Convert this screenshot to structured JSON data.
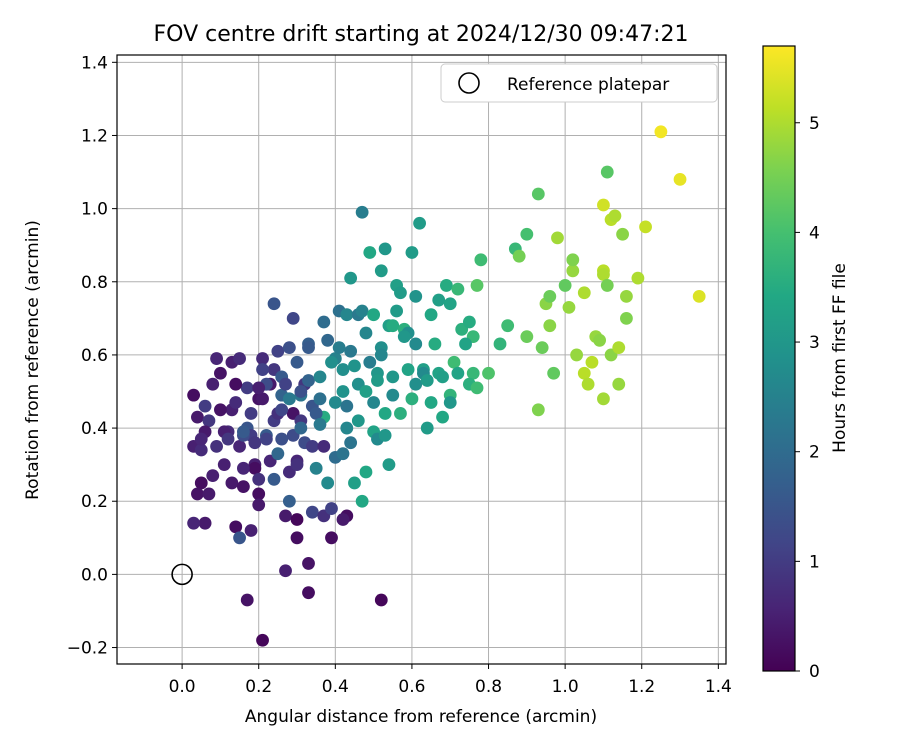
{
  "chart_data": {
    "type": "scatter",
    "title": "FOV centre drift starting at 2024/12/30 09:47:21",
    "xlabel": "Angular distance from reference (arcmin)",
    "ylabel": "Rotation from reference (arcmin)",
    "xlim": [
      -0.17,
      1.42
    ],
    "ylim": [
      -0.245,
      1.42
    ],
    "xticks": [
      0.0,
      0.2,
      0.4,
      0.6,
      0.8,
      1.0,
      1.2,
      1.4
    ],
    "xtick_labels": [
      "0.0",
      "0.2",
      "0.4",
      "0.6",
      "0.8",
      "1.0",
      "1.2",
      "1.4"
    ],
    "yticks": [
      -0.2,
      0.0,
      0.2,
      0.4,
      0.6,
      0.8,
      1.0,
      1.2,
      1.4
    ],
    "ytick_labels": [
      "−0.2",
      "0.0",
      "0.2",
      "0.4",
      "0.6",
      "0.8",
      "1.0",
      "1.2",
      "1.4"
    ],
    "grid": true,
    "legend": {
      "position": "top-right",
      "entries": [
        "Reference platepar"
      ]
    },
    "reference_point": {
      "name": "Reference platepar",
      "x": 0.0,
      "y": 0.0
    },
    "colorbar": {
      "label": "Hours from first FF file",
      "colormap": "viridis",
      "range": [
        0,
        5.7
      ],
      "ticks": [
        0,
        1,
        2,
        3,
        4,
        5
      ],
      "tick_labels": [
        "0",
        "1",
        "2",
        "3",
        "4",
        "5"
      ]
    },
    "points": [
      [
        0.03,
        0.49,
        0.2
      ],
      [
        0.04,
        0.43,
        0.4
      ],
      [
        0.03,
        0.35,
        0.5
      ],
      [
        0.06,
        0.14,
        0.4
      ],
      [
        0.03,
        0.14,
        0.6
      ],
      [
        0.05,
        0.25,
        0.2
      ],
      [
        0.04,
        0.22,
        0.3
      ],
      [
        0.07,
        0.22,
        0.4
      ],
      [
        0.05,
        0.34,
        0.7
      ],
      [
        0.07,
        0.42,
        0.9
      ],
      [
        0.06,
        0.46,
        1.0
      ],
      [
        0.08,
        0.52,
        0.5
      ],
      [
        0.09,
        0.59,
        0.6
      ],
      [
        0.1,
        0.55,
        0.3
      ],
      [
        0.11,
        0.3,
        0.5
      ],
      [
        0.12,
        0.39,
        0.7
      ],
      [
        0.13,
        0.45,
        0.5
      ],
      [
        0.13,
        0.25,
        0.4
      ],
      [
        0.14,
        0.13,
        0.2
      ],
      [
        0.15,
        0.35,
        0.6
      ],
      [
        0.16,
        0.24,
        0.3
      ],
      [
        0.13,
        0.58,
        0.5
      ],
      [
        0.15,
        0.59,
        0.7
      ],
      [
        0.17,
        0.51,
        1.0
      ],
      [
        0.17,
        0.4,
        1.5
      ],
      [
        0.18,
        0.38,
        1.0
      ],
      [
        0.19,
        0.3,
        0.5
      ],
      [
        0.2,
        0.22,
        0.2
      ],
      [
        0.18,
        0.12,
        0.5
      ],
      [
        0.2,
        0.19,
        0.4
      ],
      [
        0.19,
        0.29,
        0.2
      ],
      [
        0.2,
        0.48,
        0.3
      ],
      [
        0.21,
        0.48,
        0.4
      ],
      [
        0.21,
        0.59,
        0.7
      ],
      [
        0.22,
        0.38,
        1.6
      ],
      [
        0.23,
        0.31,
        0.6
      ],
      [
        0.24,
        0.42,
        1.0
      ],
      [
        0.23,
        0.52,
        0.4
      ],
      [
        0.25,
        0.44,
        0.8
      ],
      [
        0.24,
        0.56,
        0.9
      ],
      [
        0.25,
        0.61,
        1.1
      ],
      [
        0.26,
        0.54,
        1.6
      ],
      [
        0.26,
        0.49,
        1.8
      ],
      [
        0.27,
        0.16,
        0.4
      ],
      [
        0.27,
        0.01,
        0.5
      ],
      [
        0.28,
        0.28,
        0.7
      ],
      [
        0.28,
        0.2,
        1.7
      ],
      [
        0.29,
        0.38,
        1.3
      ],
      [
        0.29,
        0.44,
        0.3
      ],
      [
        0.3,
        0.31,
        0.6
      ],
      [
        0.3,
        0.1,
        0.2
      ],
      [
        0.3,
        0.15,
        0.1
      ],
      [
        0.31,
        0.42,
        0.9
      ],
      [
        0.31,
        0.49,
        2.2
      ],
      [
        0.32,
        0.52,
        0.9
      ],
      [
        0.33,
        0.53,
        1.8
      ],
      [
        0.33,
        0.03,
        0.3
      ],
      [
        0.33,
        -0.05,
        0.2
      ],
      [
        0.34,
        0.46,
        1.5
      ],
      [
        0.34,
        0.17,
        1.2
      ],
      [
        0.35,
        0.29,
        2.5
      ],
      [
        0.36,
        0.54,
        2.6
      ],
      [
        0.36,
        0.48,
        2.1
      ],
      [
        0.37,
        0.43,
        3.5
      ],
      [
        0.37,
        0.16,
        0.8
      ],
      [
        0.38,
        0.25,
        2.7
      ],
      [
        0.39,
        0.1,
        0.2
      ],
      [
        0.39,
        0.18,
        1.1
      ],
      [
        0.4,
        0.59,
        2.5
      ],
      [
        0.4,
        0.47,
        2.7
      ],
      [
        0.41,
        0.72,
        2.1
      ],
      [
        0.42,
        0.56,
        2.8
      ],
      [
        0.42,
        0.5,
        2.9
      ],
      [
        0.43,
        0.71,
        2.6
      ],
      [
        0.43,
        0.4,
        2.6
      ],
      [
        0.44,
        0.61,
        2.3
      ],
      [
        0.44,
        0.81,
        3.0
      ],
      [
        0.45,
        0.25,
        3.2
      ],
      [
        0.46,
        0.71,
        2.3
      ],
      [
        0.46,
        0.52,
        2.8
      ],
      [
        0.47,
        0.99,
        2.4
      ],
      [
        0.47,
        0.72,
        2.5
      ],
      [
        0.48,
        0.28,
        3.4
      ],
      [
        0.48,
        0.66,
        2.6
      ],
      [
        0.49,
        0.88,
        3.4
      ],
      [
        0.5,
        0.39,
        3.3
      ],
      [
        0.5,
        0.71,
        3.4
      ],
      [
        0.51,
        0.55,
        3.0
      ],
      [
        0.51,
        0.53,
        3.1
      ],
      [
        0.52,
        0.83,
        3.1
      ],
      [
        0.52,
        0.62,
        2.8
      ],
      [
        0.53,
        0.89,
        3.0
      ],
      [
        0.53,
        0.44,
        3.4
      ],
      [
        0.54,
        0.68,
        3.2
      ],
      [
        0.54,
        0.3,
        3.1
      ],
      [
        0.55,
        0.68,
        3.5
      ],
      [
        0.55,
        0.54,
        3.0
      ],
      [
        0.56,
        0.79,
        3.2
      ],
      [
        0.57,
        0.77,
        3.1
      ],
      [
        0.58,
        0.67,
        3.6
      ],
      [
        0.59,
        0.66,
        2.8
      ],
      [
        0.6,
        0.88,
        3.1
      ],
      [
        0.61,
        0.76,
        2.9
      ],
      [
        0.61,
        0.63,
        2.7
      ],
      [
        0.62,
        0.96,
        3.1
      ],
      [
        0.63,
        0.56,
        3.2
      ],
      [
        0.64,
        0.4,
        3.1
      ],
      [
        0.65,
        0.71,
        3.4
      ],
      [
        0.66,
        0.63,
        3.5
      ],
      [
        0.67,
        0.55,
        3.3
      ],
      [
        0.67,
        0.75,
        3.2
      ],
      [
        0.68,
        0.43,
        3.4
      ],
      [
        0.69,
        0.79,
        3.5
      ],
      [
        0.7,
        0.74,
        3.3
      ],
      [
        0.7,
        0.49,
        3.7
      ],
      [
        0.71,
        0.58,
        3.9
      ],
      [
        0.72,
        0.78,
        3.8
      ],
      [
        0.73,
        0.67,
        3.6
      ],
      [
        0.75,
        0.69,
        3.5
      ],
      [
        0.76,
        0.55,
        3.8
      ],
      [
        0.76,
        0.65,
        3.8
      ],
      [
        0.77,
        0.79,
        4.2
      ],
      [
        0.78,
        0.86,
        3.9
      ],
      [
        0.8,
        0.55,
        4.1
      ],
      [
        0.83,
        0.63,
        3.7
      ],
      [
        0.85,
        0.68,
        3.9
      ],
      [
        0.87,
        0.89,
        3.8
      ],
      [
        0.88,
        0.87,
        4.5
      ],
      [
        0.9,
        0.65,
        4.4
      ],
      [
        0.9,
        0.93,
        4.0
      ],
      [
        0.93,
        1.04,
        4.2
      ],
      [
        0.93,
        0.45,
        4.6
      ],
      [
        0.94,
        0.62,
        4.4
      ],
      [
        0.95,
        0.74,
        4.7
      ],
      [
        0.96,
        0.68,
        4.7
      ],
      [
        0.96,
        0.76,
        4.4
      ],
      [
        0.97,
        0.55,
        4.3
      ],
      [
        0.98,
        0.92,
        4.9
      ],
      [
        1.0,
        0.79,
        4.3
      ],
      [
        1.01,
        0.73,
        4.8
      ],
      [
        1.02,
        0.83,
        4.8
      ],
      [
        1.02,
        0.86,
        4.6
      ],
      [
        1.03,
        0.6,
        4.8
      ],
      [
        1.05,
        0.77,
        5.0
      ],
      [
        1.05,
        0.55,
        5.1
      ],
      [
        1.06,
        0.52,
        5.0
      ],
      [
        1.07,
        0.58,
        5.1
      ],
      [
        1.08,
        0.65,
        4.8
      ],
      [
        1.09,
        0.64,
        4.7
      ],
      [
        1.1,
        0.48,
        4.9
      ],
      [
        1.1,
        0.83,
        5.1
      ],
      [
        1.1,
        0.82,
        5.0
      ],
      [
        1.11,
        1.1,
        4.2
      ],
      [
        1.11,
        0.79,
        4.5
      ],
      [
        1.12,
        0.6,
        4.7
      ],
      [
        1.12,
        0.97,
        5.1
      ],
      [
        1.13,
        0.98,
        5.0
      ],
      [
        1.14,
        0.52,
        4.8
      ],
      [
        1.14,
        0.62,
        5.0
      ],
      [
        1.15,
        0.93,
        4.7
      ],
      [
        1.16,
        0.76,
        4.8
      ],
      [
        1.16,
        0.7,
        4.6
      ],
      [
        1.19,
        0.81,
        5.0
      ],
      [
        1.21,
        0.95,
        5.2
      ],
      [
        1.25,
        1.21,
        5.6
      ],
      [
        1.3,
        1.08,
        5.5
      ],
      [
        1.35,
        0.76,
        5.4
      ],
      [
        1.1,
        1.01,
        5.3
      ],
      [
        0.15,
        0.1,
        1.5
      ],
      [
        0.21,
        -0.18,
        0.1
      ],
      [
        0.17,
        -0.07,
        0.3
      ],
      [
        0.52,
        -0.07,
        0.1
      ],
      [
        0.06,
        0.39,
        0.4
      ],
      [
        0.08,
        0.27,
        0.5
      ],
      [
        0.1,
        0.45,
        0.3
      ],
      [
        0.11,
        0.39,
        0.5
      ],
      [
        0.14,
        0.47,
        0.7
      ],
      [
        0.16,
        0.29,
        0.6
      ],
      [
        0.18,
        0.44,
        1.0
      ],
      [
        0.19,
        0.36,
        0.9
      ],
      [
        0.21,
        0.56,
        1.1
      ],
      [
        0.22,
        0.52,
        1.3
      ],
      [
        0.24,
        0.26,
        1.6
      ],
      [
        0.25,
        0.33,
        1.9
      ],
      [
        0.26,
        0.37,
        1.4
      ],
      [
        0.27,
        0.52,
        1.1
      ],
      [
        0.28,
        0.62,
        1.4
      ],
      [
        0.29,
        0.7,
        1.2
      ],
      [
        0.3,
        0.58,
        1.6
      ],
      [
        0.31,
        0.4,
        1.9
      ],
      [
        0.32,
        0.36,
        1.3
      ],
      [
        0.33,
        0.63,
        1.7
      ],
      [
        0.34,
        0.35,
        1.0
      ],
      [
        0.35,
        0.44,
        1.6
      ],
      [
        0.36,
        0.41,
        2.3
      ],
      [
        0.37,
        0.69,
        2.0
      ],
      [
        0.38,
        0.64,
        1.9
      ],
      [
        0.39,
        0.58,
        2.8
      ],
      [
        0.4,
        0.32,
        2.0
      ],
      [
        0.41,
        0.62,
        2.4
      ],
      [
        0.42,
        0.33,
        2.2
      ],
      [
        0.43,
        0.46,
        2.2
      ],
      [
        0.44,
        0.36,
        2.2
      ],
      [
        0.45,
        0.57,
        2.9
      ],
      [
        0.46,
        0.42,
        3.0
      ],
      [
        0.47,
        0.2,
        3.4
      ],
      [
        0.48,
        0.5,
        3.2
      ],
      [
        0.49,
        0.58,
        2.4
      ],
      [
        0.5,
        0.47,
        2.6
      ],
      [
        0.51,
        0.37,
        2.7
      ],
      [
        0.52,
        0.6,
        2.6
      ],
      [
        0.53,
        0.38,
        3.0
      ],
      [
        0.55,
        0.49,
        2.7
      ],
      [
        0.56,
        0.72,
        3.1
      ],
      [
        0.57,
        0.44,
        3.6
      ],
      [
        0.58,
        0.65,
        3.0
      ],
      [
        0.59,
        0.56,
        3.3
      ],
      [
        0.6,
        0.48,
        3.6
      ],
      [
        0.61,
        0.52,
        2.8
      ],
      [
        0.63,
        0.55,
        2.7
      ],
      [
        0.64,
        0.53,
        3.1
      ],
      [
        0.65,
        0.47,
        3.4
      ],
      [
        0.68,
        0.54,
        3.2
      ],
      [
        0.7,
        0.47,
        3.0
      ],
      [
        0.72,
        0.55,
        3.3
      ],
      [
        0.74,
        0.63,
        3.3
      ],
      [
        0.75,
        0.52,
        3.6
      ],
      [
        0.77,
        0.51,
        3.9
      ],
      [
        0.16,
        0.38,
        1.3
      ],
      [
        0.16,
        0.39,
        1.6
      ],
      [
        0.2,
        0.26,
        0.8
      ],
      [
        0.22,
        0.37,
        1.1
      ],
      [
        0.24,
        0.74,
        1.5
      ],
      [
        0.3,
        0.3,
        0.8
      ],
      [
        0.2,
        0.51,
        0.5
      ],
      [
        0.12,
        0.37,
        0.9
      ],
      [
        0.09,
        0.35,
        0.8
      ],
      [
        0.05,
        0.37,
        0.6
      ],
      [
        0.14,
        0.52,
        0.2
      ],
      [
        0.26,
        0.45,
        1.2
      ],
      [
        0.31,
        0.5,
        1.4
      ],
      [
        0.33,
        0.62,
        1.6
      ],
      [
        0.37,
        0.35,
        0.7
      ],
      [
        0.28,
        0.48,
        2.3
      ],
      [
        0.43,
        0.16,
        0.2
      ],
      [
        0.42,
        0.15,
        0.4
      ]
    ]
  }
}
